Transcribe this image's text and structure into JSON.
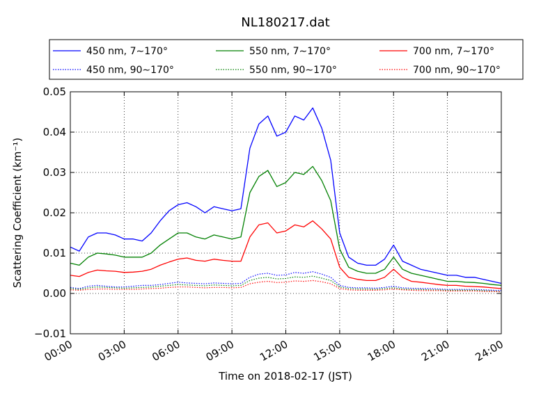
{
  "chart_data": {
    "type": "line",
    "title": "NL180217.dat",
    "xlabel": "Time on 2018-02-17 (JST)",
    "ylabel": "Scattering Coefficient (km⁻¹)",
    "xlim": [
      "00:00",
      "24:00"
    ],
    "ylim": [
      -0.01,
      0.05
    ],
    "x_tick_labels": [
      "00:00",
      "03:00",
      "06:00",
      "09:00",
      "12:00",
      "15:00",
      "18:00",
      "21:00",
      "24:00"
    ],
    "y_tick_labels": [
      "−0.01",
      "0.00",
      "0.01",
      "0.02",
      "0.03",
      "0.04",
      "0.05"
    ],
    "grid": true,
    "legend_position": "top",
    "x": [
      "00:00",
      "00:30",
      "01:00",
      "01:30",
      "02:00",
      "02:30",
      "03:00",
      "03:30",
      "04:00",
      "04:30",
      "05:00",
      "05:30",
      "06:00",
      "06:30",
      "07:00",
      "07:30",
      "08:00",
      "08:30",
      "09:00",
      "09:30",
      "10:00",
      "10:30",
      "11:00",
      "11:30",
      "12:00",
      "12:30",
      "13:00",
      "13:30",
      "14:00",
      "14:30",
      "15:00",
      "15:30",
      "16:00",
      "16:30",
      "17:00",
      "17:30",
      "18:00",
      "18:30",
      "19:00",
      "19:30",
      "20:00",
      "20:30",
      "21:00",
      "21:30",
      "22:00",
      "22:30",
      "23:00",
      "23:30",
      "24:00"
    ],
    "series": [
      {
        "name": "450 nm, 7∼170°",
        "color": "#0000ff",
        "dash": "solid",
        "values": [
          0.0115,
          0.0105,
          0.014,
          0.015,
          0.015,
          0.0145,
          0.0135,
          0.0135,
          0.013,
          0.015,
          0.018,
          0.0205,
          0.022,
          0.0225,
          0.0215,
          0.02,
          0.0215,
          0.021,
          0.0205,
          0.021,
          0.036,
          0.042,
          0.044,
          0.039,
          0.04,
          0.044,
          0.043,
          0.046,
          0.041,
          0.033,
          0.015,
          0.009,
          0.0075,
          0.007,
          0.007,
          0.0085,
          0.012,
          0.008,
          0.007,
          0.006,
          0.0055,
          0.005,
          0.0045,
          0.0045,
          0.004,
          0.004,
          0.0035,
          0.003,
          0.0025
        ]
      },
      {
        "name": "450 nm, 90∼170°",
        "color": "#0000ff",
        "dash": "dotted",
        "values": [
          0.0015,
          0.0012,
          0.0018,
          0.002,
          0.0018,
          0.0016,
          0.0016,
          0.0018,
          0.002,
          0.002,
          0.0022,
          0.0025,
          0.0028,
          0.0026,
          0.0025,
          0.0024,
          0.0026,
          0.0025,
          0.0024,
          0.0025,
          0.004,
          0.0048,
          0.005,
          0.0045,
          0.0046,
          0.0052,
          0.005,
          0.0054,
          0.0048,
          0.004,
          0.002,
          0.0015,
          0.0014,
          0.0014,
          0.0013,
          0.0015,
          0.0018,
          0.0014,
          0.0013,
          0.0012,
          0.0012,
          0.0011,
          0.001,
          0.001,
          0.001,
          0.001,
          0.0009,
          0.0008,
          0.0007
        ]
      },
      {
        "name": "550 nm, 7∼170°",
        "color": "#008000",
        "dash": "solid",
        "values": [
          0.0075,
          0.007,
          0.009,
          0.01,
          0.0098,
          0.0095,
          0.009,
          0.009,
          0.009,
          0.01,
          0.012,
          0.0135,
          0.015,
          0.015,
          0.014,
          0.0135,
          0.0145,
          0.014,
          0.0135,
          0.014,
          0.025,
          0.029,
          0.0305,
          0.0265,
          0.0275,
          0.03,
          0.0295,
          0.0315,
          0.028,
          0.023,
          0.011,
          0.0065,
          0.0055,
          0.005,
          0.005,
          0.006,
          0.009,
          0.006,
          0.005,
          0.0045,
          0.004,
          0.0035,
          0.003,
          0.003,
          0.0028,
          0.0027,
          0.0025,
          0.0022,
          0.002
        ]
      },
      {
        "name": "550 nm, 90∼170°",
        "color": "#008000",
        "dash": "dotted",
        "values": [
          0.0012,
          0.001,
          0.0014,
          0.0016,
          0.0015,
          0.0014,
          0.0013,
          0.0014,
          0.0015,
          0.0016,
          0.0018,
          0.002,
          0.0022,
          0.0021,
          0.002,
          0.0019,
          0.0021,
          0.002,
          0.0019,
          0.002,
          0.0032,
          0.0038,
          0.004,
          0.0036,
          0.0037,
          0.0041,
          0.004,
          0.0043,
          0.0038,
          0.0032,
          0.0016,
          0.0012,
          0.0011,
          0.0011,
          0.001,
          0.0012,
          0.0014,
          0.0011,
          0.001,
          0.001,
          0.0009,
          0.0009,
          0.0008,
          0.0008,
          0.0008,
          0.0008,
          0.0007,
          0.0006,
          0.0005
        ]
      },
      {
        "name": "700 nm, 7∼170°",
        "color": "#ff0000",
        "dash": "solid",
        "values": [
          0.0045,
          0.0042,
          0.0052,
          0.0058,
          0.0056,
          0.0055,
          0.0052,
          0.0053,
          0.0055,
          0.006,
          0.007,
          0.0078,
          0.0085,
          0.0088,
          0.0082,
          0.008,
          0.0085,
          0.0082,
          0.008,
          0.008,
          0.014,
          0.017,
          0.0175,
          0.015,
          0.0155,
          0.017,
          0.0165,
          0.018,
          0.016,
          0.0135,
          0.0065,
          0.004,
          0.0035,
          0.0032,
          0.0032,
          0.004,
          0.006,
          0.004,
          0.003,
          0.0028,
          0.0025,
          0.0022,
          0.002,
          0.002,
          0.0018,
          0.0017,
          0.0016,
          0.0014,
          0.0012
        ]
      },
      {
        "name": "700 nm, 90∼170°",
        "color": "#ff0000",
        "dash": "dotted",
        "values": [
          0.0009,
          0.0008,
          0.001,
          0.0011,
          0.0011,
          0.001,
          0.001,
          0.001,
          0.0011,
          0.0012,
          0.0013,
          0.0015,
          0.0016,
          0.0016,
          0.0015,
          0.0014,
          0.0015,
          0.0015,
          0.0014,
          0.0015,
          0.0024,
          0.0028,
          0.003,
          0.0027,
          0.0028,
          0.0031,
          0.003,
          0.0032,
          0.0029,
          0.0024,
          0.0012,
          0.0009,
          0.0008,
          0.0008,
          0.0008,
          0.0009,
          0.0011,
          0.0009,
          0.0008,
          0.0007,
          0.0007,
          0.0007,
          0.0006,
          0.0006,
          0.0006,
          0.0006,
          0.0005,
          0.0005,
          0.0004
        ]
      }
    ]
  }
}
